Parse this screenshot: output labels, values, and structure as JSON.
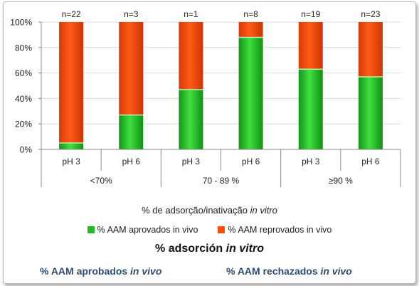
{
  "chart_data": {
    "type": "bar",
    "stacked": true,
    "percent": true,
    "categories": [
      "pH 3",
      "pH 6",
      "pH 3",
      "pH 6",
      "pH 3",
      "pH 6"
    ],
    "groups": [
      {
        "label": "<70%",
        "span": 2
      },
      {
        "label": "70 - 89 %",
        "span": 2
      },
      {
        "label": "≥90 %",
        "span": 2
      }
    ],
    "n_labels": [
      "n=22",
      "n=3",
      "n=1",
      "n=8",
      "n=19",
      "n=23"
    ],
    "series": [
      {
        "name": "% AAM aprovados in vivo",
        "color": "#22bb22",
        "values": [
          5,
          27,
          47,
          88,
          63,
          57
        ]
      },
      {
        "name": "% AAM reprovados in vivo",
        "color": "#ff4a0a",
        "values": [
          95,
          73,
          53,
          12,
          37,
          43
        ]
      }
    ],
    "ylim": [
      0,
      100
    ],
    "yticks": [
      "0%",
      "20%",
      "40%",
      "60%",
      "80%",
      "100%"
    ],
    "xlabel_pt": "% de adsorção/inativação",
    "xlabel_pt_italic": "in vitro",
    "grid": "horizontal"
  },
  "caption_es": {
    "title": "% adsorción",
    "title_italic": "in vitro",
    "legend_green": "% AAM aprobados",
    "legend_green_italic": "in vivo",
    "legend_red": "% AAM rechazados",
    "legend_red_italic": "in vivo"
  }
}
